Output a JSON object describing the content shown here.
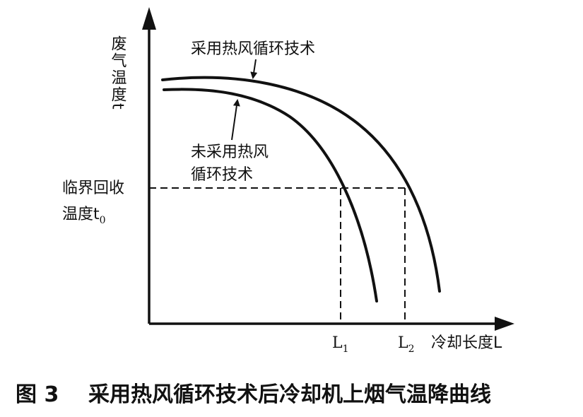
{
  "diagram": {
    "y_axis_label": "废气温度t",
    "x_axis_label": "冷却长度L",
    "threshold_label_line1": "临界回收",
    "threshold_label_line2_main": "温度t",
    "threshold_label_line2_sub": "0",
    "curve_with_label": "采用热风循环技术",
    "curve_without_label_line1": "未采用热风",
    "curve_without_label_line2": "循环技术",
    "marker_l1_main": "L",
    "marker_l1_sub": "1",
    "marker_l2_main": "L",
    "marker_l2_sub": "2"
  },
  "caption": {
    "number": "图 3",
    "text": "采用热风循环技术后冷却机上烟气温降曲线"
  }
}
